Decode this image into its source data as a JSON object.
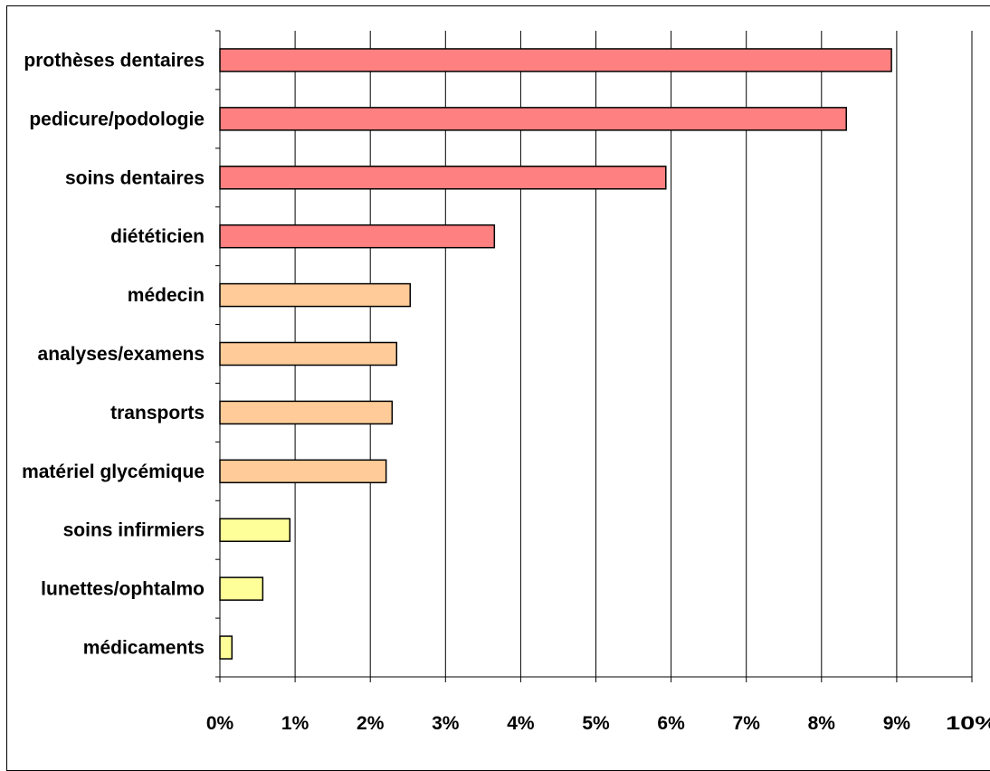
{
  "chart_data": {
    "type": "bar",
    "orientation": "horizontal",
    "title": "",
    "xlabel": "",
    "ylabel": "",
    "categories": [
      "prothèses dentaires",
      "pedicure/podologie",
      "soins dentaires",
      "diététicien",
      "médecin",
      "analyses/examens",
      "transports",
      "matériel glycémique",
      "soins infirmiers",
      "lunettes/ophtalmo",
      "médicaments"
    ],
    "values": [
      8.93,
      8.33,
      5.93,
      3.65,
      2.53,
      2.35,
      2.29,
      2.21,
      0.93,
      0.57,
      0.16
    ],
    "bar_colors": [
      "#ff8080",
      "#ff8080",
      "#ff8080",
      "#ff8080",
      "#ffcc99",
      "#ffcc99",
      "#ffcc99",
      "#ffcc99",
      "#ffff99",
      "#ffff99",
      "#ffff99"
    ],
    "xlim": [
      0,
      10
    ],
    "xticks": [
      0,
      1,
      2,
      3,
      4,
      5,
      6,
      7,
      8,
      9,
      10
    ],
    "xtick_labels": [
      "0%",
      "1%",
      "2%",
      "3%",
      "4%",
      "5%",
      "6%",
      "7%",
      "8%",
      "9%",
      "10%"
    ],
    "grid": "vertical",
    "legend": "none"
  }
}
